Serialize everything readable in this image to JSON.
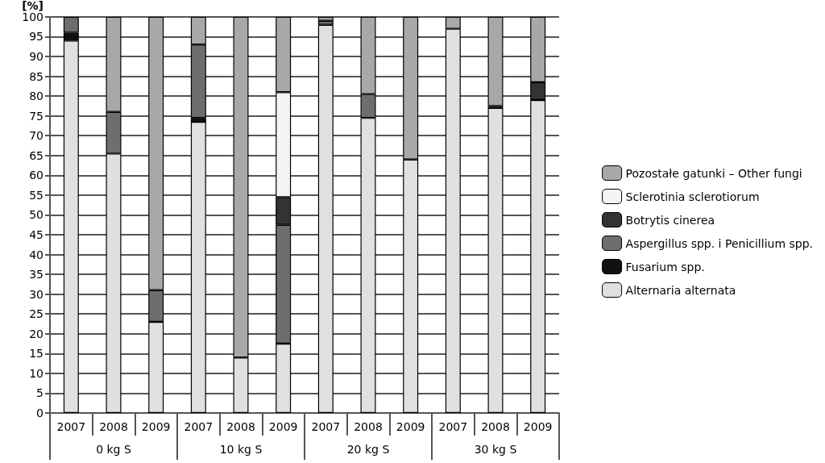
{
  "chart_data": {
    "type": "bar",
    "stacked": true,
    "ylabel": "[%]",
    "categories": [
      "2007",
      "2008",
      "2009",
      "2007",
      "2008",
      "2009",
      "2007",
      "2008",
      "2009",
      "2007",
      "2008",
      "2009"
    ],
    "annotations": [
      "0 kg S",
      "10 kg S",
      "20 kg S",
      "30 kg S"
    ],
    "series": [
      {
        "name": "Alternaria alternata",
        "color": "#e0e0e0",
        "values": [
          94,
          65.5,
          23,
          73.5,
          14,
          17.5,
          98,
          74.5,
          64,
          97,
          77,
          79
        ]
      },
      {
        "name": "Fusarium spp.",
        "color": "#111111",
        "values": [
          2,
          0,
          0,
          1,
          0,
          0,
          0,
          0,
          0,
          0,
          0.5,
          0
        ]
      },
      {
        "name": "Aspergillus spp. i Penicillium spp.",
        "color": "#6e6e6e",
        "values": [
          4,
          10.5,
          8,
          18.5,
          0,
          30,
          1,
          6,
          0,
          0,
          0,
          0
        ]
      },
      {
        "name": "Botrytis cinerea",
        "color": "#333333",
        "values": [
          0,
          0,
          0,
          0,
          0,
          7,
          0,
          0,
          0,
          0,
          0,
          4.5
        ]
      },
      {
        "name": "Sclerotinia sclerotiorum",
        "color": "#f4f4f4",
        "values": [
          0,
          0,
          0,
          0,
          0,
          26.5,
          0,
          0,
          0,
          0,
          0,
          0
        ]
      },
      {
        "name": "Pozostałe gatunki – Other fungi",
        "color": "#a8a8a8",
        "values": [
          0,
          24,
          69,
          7,
          86,
          19,
          1,
          19.5,
          36,
          3,
          22.5,
          16.5
        ]
      }
    ],
    "ylim": [
      0,
      100
    ],
    "yticks": [
      0,
      5,
      10,
      15,
      20,
      25,
      30,
      35,
      40,
      45,
      50,
      55,
      60,
      65,
      70,
      75,
      80,
      85,
      90,
      95,
      100
    ],
    "grid": "y",
    "legend": "right"
  }
}
